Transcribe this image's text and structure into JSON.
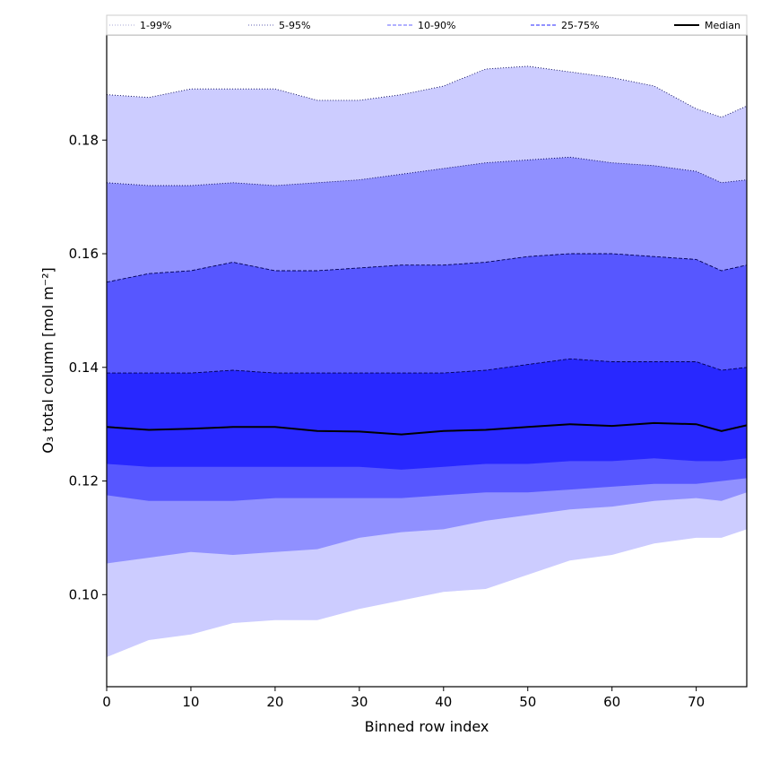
{
  "chart_data": {
    "type": "area",
    "xlabel": "Binned row index",
    "ylabel": "O₃ total column [mol m⁻²]",
    "xlim": [
      0,
      76
    ],
    "ylim": [
      0.0838,
      0.1985
    ],
    "x_ticks": [
      0,
      10,
      20,
      30,
      40,
      50,
      60,
      70
    ],
    "y_ticks": [
      0.1,
      0.12,
      0.14,
      0.16,
      0.18
    ],
    "y_tick_labels": [
      "0.10",
      "0.12",
      "0.14",
      "0.16",
      "0.18"
    ],
    "legend_position": "top",
    "x": [
      0,
      5,
      10,
      15,
      20,
      25,
      30,
      35,
      40,
      45,
      50,
      55,
      60,
      65,
      70,
      73,
      76
    ],
    "bands": [
      {
        "name": "1-99%",
        "color": "#ccccff",
        "lower": [
          0.089,
          0.092,
          0.093,
          0.095,
          0.0955,
          0.0955,
          0.0975,
          0.099,
          0.1005,
          0.101,
          0.1035,
          0.106,
          0.107,
          0.109,
          0.11,
          0.11,
          0.1115
        ],
        "upper": [
          0.188,
          0.1875,
          0.189,
          0.189,
          0.189,
          0.187,
          0.187,
          0.188,
          0.1895,
          0.1925,
          0.193,
          0.192,
          0.191,
          0.1895,
          0.1855,
          0.184,
          0.186
        ]
      },
      {
        "name": "5-95%",
        "color": "#9090ff",
        "lower": [
          0.1055,
          0.1065,
          0.1075,
          0.107,
          0.1075,
          0.108,
          0.11,
          0.111,
          0.1115,
          0.113,
          0.114,
          0.115,
          0.1155,
          0.1165,
          0.117,
          0.1165,
          0.118
        ],
        "upper": [
          0.1725,
          0.172,
          0.172,
          0.1725,
          0.172,
          0.1725,
          0.173,
          0.174,
          0.175,
          0.176,
          0.1765,
          0.177,
          0.176,
          0.1755,
          0.1745,
          0.1725,
          0.173
        ]
      },
      {
        "name": "10-90%",
        "color": "#5757ff",
        "lower": [
          0.1175,
          0.1165,
          0.1165,
          0.1165,
          0.117,
          0.117,
          0.117,
          0.117,
          0.1175,
          0.118,
          0.118,
          0.1185,
          0.119,
          0.1195,
          0.1195,
          0.12,
          0.1205
        ],
        "upper": [
          0.155,
          0.1565,
          0.157,
          0.1585,
          0.157,
          0.157,
          0.1575,
          0.158,
          0.158,
          0.1585,
          0.1595,
          0.16,
          0.16,
          0.1595,
          0.159,
          0.157,
          0.158
        ]
      },
      {
        "name": "25-75%",
        "color": "#2828ff",
        "lower": [
          0.123,
          0.1225,
          0.1225,
          0.1225,
          0.1225,
          0.1225,
          0.1225,
          0.122,
          0.1225,
          0.123,
          0.123,
          0.1235,
          0.1235,
          0.124,
          0.1235,
          0.1235,
          0.124
        ],
        "upper": [
          0.139,
          0.139,
          0.139,
          0.1395,
          0.139,
          0.139,
          0.139,
          0.139,
          0.139,
          0.1395,
          0.1405,
          0.1415,
          0.141,
          0.141,
          0.141,
          0.1395,
          0.14
        ]
      }
    ],
    "median": {
      "name": "Median",
      "color": "#000000",
      "values": [
        0.1295,
        0.129,
        0.1292,
        0.1295,
        0.1295,
        0.1288,
        0.1287,
        0.1282,
        0.1288,
        0.129,
        0.1295,
        0.13,
        0.1297,
        0.1302,
        0.13,
        0.1288,
        0.1298
      ]
    },
    "legend": [
      {
        "label": "1-99%",
        "style": "dotted",
        "color": "#bbbbdd"
      },
      {
        "label": "5-95%",
        "style": "dotted",
        "color": "#8080c0"
      },
      {
        "label": "10-90%",
        "style": "dashed",
        "color": "#8080ff"
      },
      {
        "label": "25-75%",
        "style": "dashed",
        "color": "#5050ff"
      },
      {
        "label": "Median",
        "style": "solid",
        "color": "#000000"
      }
    ]
  }
}
